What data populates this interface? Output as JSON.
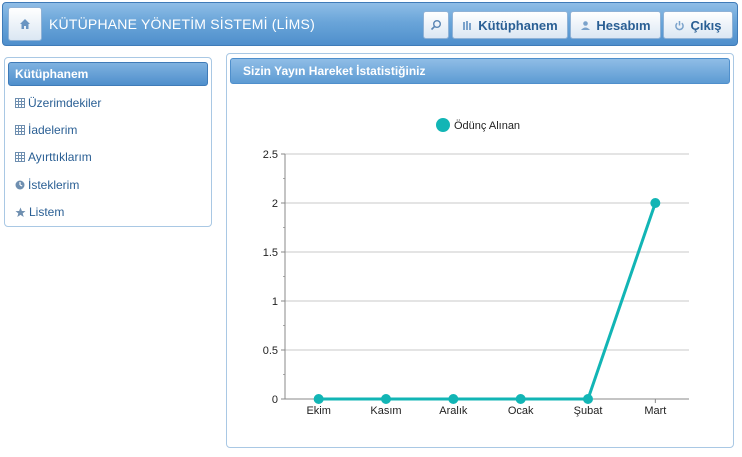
{
  "header": {
    "title": "KÜTÜPHANE YÖNETİM SİSTEMİ (LİMS)",
    "buttons": {
      "library": "Kütüphanem",
      "account": "Hesabım",
      "logout": "Çıkış"
    }
  },
  "sidebar": {
    "title": "Kütüphanem",
    "items": [
      {
        "label": "Üzerimdekiler",
        "icon": "table-icon"
      },
      {
        "label": "İadelerim",
        "icon": "table-icon"
      },
      {
        "label": "Ayırttıklarım",
        "icon": "table-icon"
      },
      {
        "label": "İsteklerim",
        "icon": "clock-icon"
      },
      {
        "label": "Listem",
        "icon": "star-icon"
      }
    ]
  },
  "panel": {
    "title": "Sizin Yayın Hareket İstatistiğiniz"
  },
  "colors": {
    "accent": "#4f8fcc",
    "series": "#12b5b5"
  },
  "chart_data": {
    "type": "line",
    "categories": [
      "Ekim",
      "Kasım",
      "Aralık",
      "Ocak",
      "Şubat",
      "Mart"
    ],
    "series": [
      {
        "name": "Ödünç Alınan",
        "values": [
          0,
          0,
          0,
          0,
          0,
          2
        ]
      }
    ],
    "yticks": [
      "0",
      "0.5",
      "1",
      "1.5",
      "2",
      "2.5"
    ],
    "ylim": [
      0,
      2.5
    ],
    "grid": true,
    "legend": "top-center"
  }
}
